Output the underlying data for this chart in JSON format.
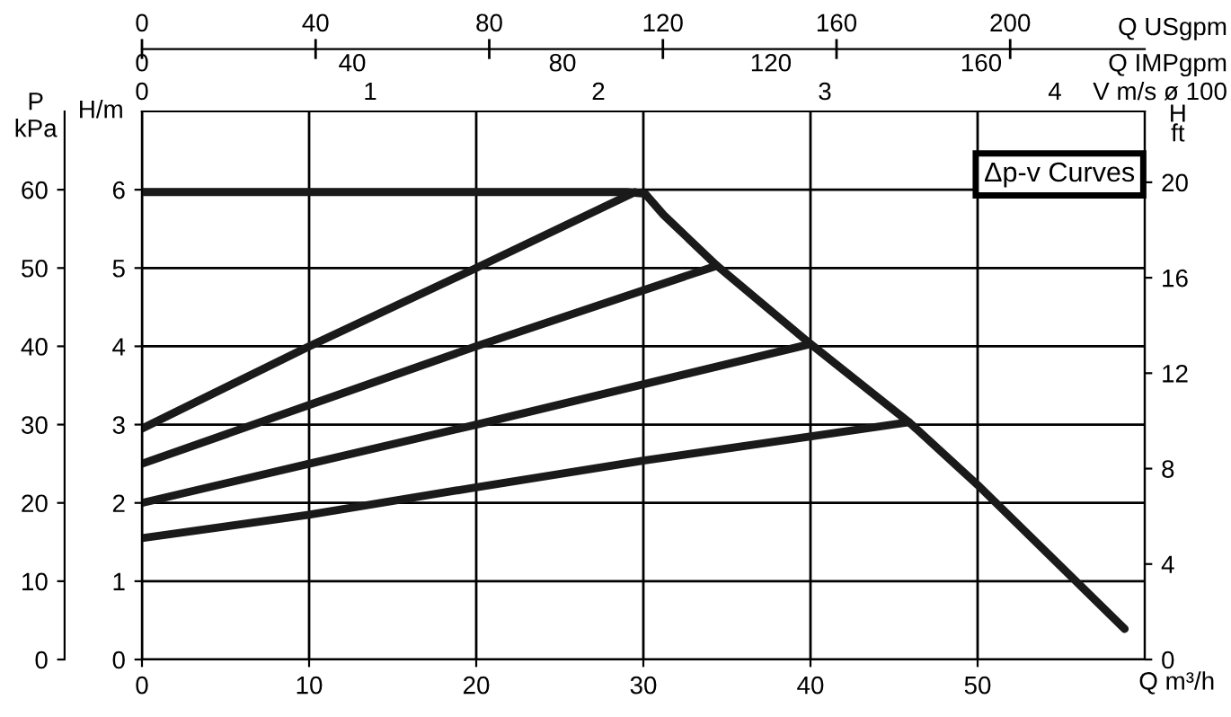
{
  "chart_data": {
    "type": "line",
    "xlabel": "Q m³/h",
    "ylabel": "H/m",
    "y2label": "H\nft",
    "y3label": "P\nkPa",
    "x2label": "Q USgpm",
    "annotations": [
      "Δp-v Curves",
      "Q IMPgpm",
      "0",
      "40",
      "80",
      "120",
      "160",
      "V m/s ø 100",
      "0",
      "1",
      "2",
      "3",
      "4"
    ],
    "xlim": [
      0,
      60
    ],
    "xticks": [
      0,
      10,
      20,
      30,
      40,
      50
    ],
    "ylim": [
      0,
      7
    ],
    "yticks": [
      0,
      1,
      2,
      3,
      4,
      5,
      6
    ],
    "y2lim": [
      0,
      22.97
    ],
    "y2ticks": [
      0,
      4,
      8,
      12,
      16,
      20
    ],
    "y3lim": [
      0,
      70
    ],
    "y3ticks": [
      0,
      10,
      20,
      30,
      40,
      50,
      60
    ],
    "x2lim": [
      0,
      231
    ],
    "x2ticks": [
      0,
      40,
      80,
      120,
      160,
      200
    ],
    "grid": true,
    "legend": false,
    "marker": "none",
    "line_style": "solid",
    "series": [
      {
        "color": "#1a1a1a",
        "x": [
          0,
          29,
          30.1,
          31.2,
          34.4,
          40,
          45.9,
          50,
          58.8
        ],
        "values": [
          5.97,
          5.97,
          5.95,
          5.68,
          5.03,
          4.03,
          3.03,
          2.23,
          0.39
        ]
      },
      {
        "color": "#1a1a1a",
        "x": [
          0,
          10,
          20,
          29.5
        ],
        "values": [
          2.95,
          4.0,
          5.0,
          5.97
        ]
      },
      {
        "color": "#1a1a1a",
        "x": [
          0,
          10,
          20,
          34.4
        ],
        "values": [
          2.5,
          3.25,
          4.0,
          5.03
        ]
      },
      {
        "color": "#1a1a1a",
        "x": [
          0,
          10,
          20,
          40
        ],
        "values": [
          2.0,
          2.5,
          3.0,
          4.03
        ]
      },
      {
        "color": "#1a1a1a",
        "x": [
          0,
          10,
          20,
          30,
          45.9
        ],
        "values": [
          1.55,
          1.85,
          2.2,
          2.54,
          3.03
        ]
      }
    ]
  }
}
